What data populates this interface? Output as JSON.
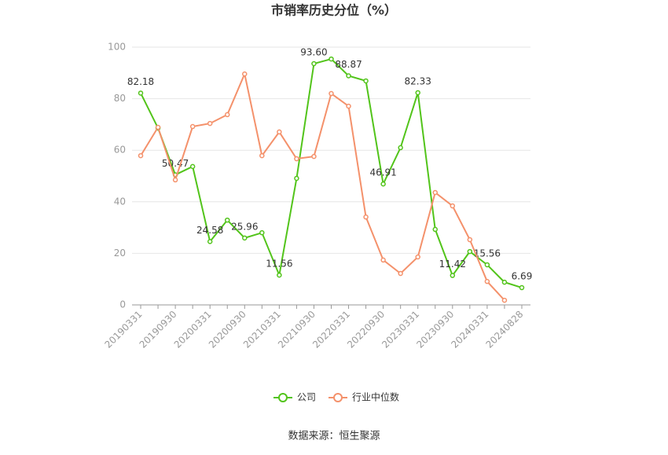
{
  "chart_data": {
    "type": "line",
    "title": "市销率历史分位（%）",
    "source": "数据来源：恒生聚源",
    "categories": [
      "20190331",
      null,
      "20190930",
      null,
      "20200331",
      null,
      "20200930",
      null,
      "20210331",
      null,
      "20210930",
      null,
      "20220331",
      null,
      "20220930",
      null,
      "20230331",
      null,
      "20230930",
      null,
      "20240331",
      null,
      "20240828"
    ],
    "series": [
      {
        "name": "公司",
        "color": "#52c41a",
        "values": [
          82.18,
          68.6,
          50.47,
          53.7,
          24.58,
          32.9,
          25.96,
          28.0,
          11.56,
          49.1,
          93.6,
          95.4,
          88.87,
          86.9,
          46.91,
          61.0,
          82.33,
          29.3,
          11.42,
          20.7,
          15.56,
          8.8,
          6.69
        ],
        "value_labels": [
          "82.18",
          null,
          "50.47",
          null,
          "24.58",
          null,
          "25.96",
          null,
          "11.56",
          null,
          "93.60",
          null,
          "88.87",
          null,
          "46.91",
          null,
          "82.33",
          null,
          "11.42",
          null,
          "15.56",
          null,
          "6.69"
        ]
      },
      {
        "name": "行业中位数",
        "color": "#f4916b",
        "values": [
          57.9,
          68.9,
          48.5,
          69.2,
          70.4,
          73.8,
          89.6,
          57.9,
          67.1,
          56.7,
          57.6,
          82.0,
          77.1,
          34.1,
          17.4,
          12.2,
          18.6,
          43.6,
          38.4,
          25.3,
          9.1,
          1.8,
          null
        ]
      }
    ],
    "ylim": [
      0,
      100
    ],
    "yticks": [
      0,
      20,
      40,
      60,
      80,
      100
    ],
    "grid": true
  }
}
